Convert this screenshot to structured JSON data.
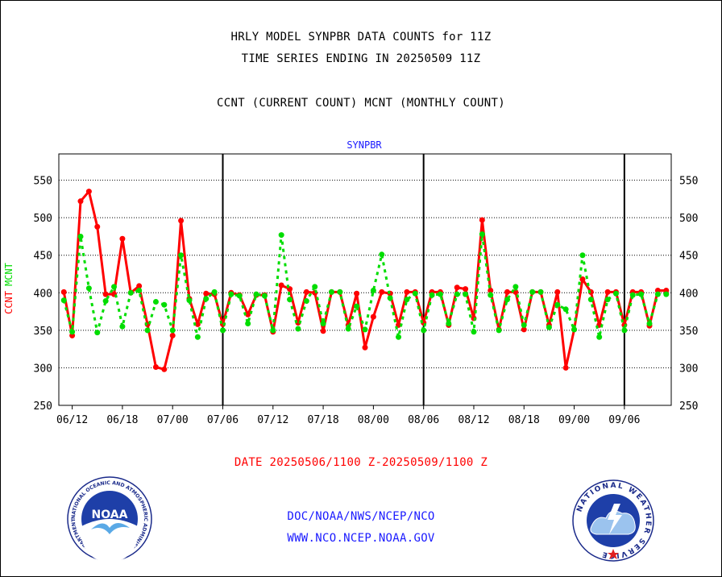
{
  "header": {
    "title_line1": "HRLY MODEL SYNPBR DATA COUNTS for 11Z",
    "title_line2": "TIME SERIES ENDING IN 20250509 11Z",
    "title_line3": "CCNT (CURRENT COUNT) MCNT (MONTHLY COUNT)"
  },
  "footer": {
    "date_range": "DATE 20250506/1100 Z-20250509/1100 Z",
    "link1": "DOC/NOAA/NWS/NCEP/NCO",
    "link2": "WWW.NCO.NCEP.NOAA.GOV"
  },
  "logos": {
    "noaa_text": "NOAA",
    "noaa_ring": "NATIONAL OCEANIC AND ATMOSPHERIC ADMINISTRATION · U.S. DEPARTMENT OF COMMERCE",
    "nws_ring": "NATIONAL WEATHER SERVICE"
  },
  "colors": {
    "ccnt": "#ff0000",
    "mcnt": "#00dd00",
    "title_blue": "#1a1aff",
    "grid": "#000000"
  },
  "chart_data": {
    "type": "line",
    "title": "SYNPBR",
    "ylabel_left": "CCNT",
    "ylabel_left2": "MCNT",
    "ylim": [
      250,
      585
    ],
    "yticks": [
      250,
      300,
      350,
      400,
      450,
      500,
      550
    ],
    "xlim": [
      -0.6,
      72.6
    ],
    "xtick_positions": [
      1,
      7,
      13,
      19,
      25,
      31,
      37,
      43,
      49,
      55,
      61,
      67
    ],
    "xticks": [
      "06/12",
      "06/18",
      "07/00",
      "07/06",
      "07/12",
      "07/18",
      "08/00",
      "08/06",
      "08/12",
      "08/18",
      "09/00",
      "09/06"
    ],
    "day_separators": [
      19,
      43,
      67
    ],
    "grid": "horizontal-dotted",
    "x": [
      0,
      1,
      2,
      3,
      4,
      5,
      6,
      7,
      8,
      9,
      10,
      11,
      12,
      13,
      14,
      15,
      16,
      17,
      18,
      19,
      20,
      21,
      22,
      23,
      24,
      25,
      26,
      27,
      28,
      29,
      30,
      31,
      32,
      33,
      34,
      35,
      36,
      37,
      38,
      39,
      40,
      41,
      42,
      43,
      44,
      45,
      46,
      47,
      48,
      49,
      50,
      51,
      52,
      53,
      54,
      55,
      56,
      57,
      58,
      59,
      60,
      61,
      62,
      63,
      64,
      65,
      66,
      67,
      68,
      69,
      70,
      71,
      72
    ],
    "series": [
      {
        "name": "CCNT",
        "values": [
          401,
          343,
          522,
          535,
          488,
          398,
          398,
          472,
          400,
          409,
          358,
          301,
          298,
          343,
          496,
          392,
          358,
          399,
          398,
          358,
          400,
          397,
          371,
          397,
          397,
          348,
          410,
          405,
          360,
          401,
          400,
          349,
          401,
          401,
          357,
          399,
          327,
          368,
          401,
          399,
          357,
          401,
          401,
          360,
          401,
          401,
          357,
          407,
          405,
          366,
          497,
          403,
          351,
          401,
          401,
          351,
          401,
          401,
          357,
          401,
          300,
          351,
          418,
          401,
          357,
          401,
          401,
          357,
          401,
          401,
          356,
          403,
          403
        ]
      },
      {
        "name": "MCNT",
        "values": [
          390,
          348,
          475,
          406,
          347,
          389,
          408,
          355,
          400,
          403,
          350,
          388,
          384,
          350,
          450,
          390,
          341,
          392,
          401,
          350,
          398,
          396,
          359,
          398,
          396,
          350,
          477,
          391,
          352,
          389,
          408,
          359,
          401,
          401,
          352,
          382,
          351,
          403,
          451,
          393,
          341,
          391,
          399,
          350,
          397,
          398,
          359,
          398,
          398,
          348,
          478,
          397,
          350,
          391,
          408,
          357,
          401,
          401,
          354,
          384,
          378,
          351,
          450,
          391,
          341,
          391,
          399,
          350,
          397,
          398,
          359,
          398,
          398
        ]
      }
    ]
  }
}
